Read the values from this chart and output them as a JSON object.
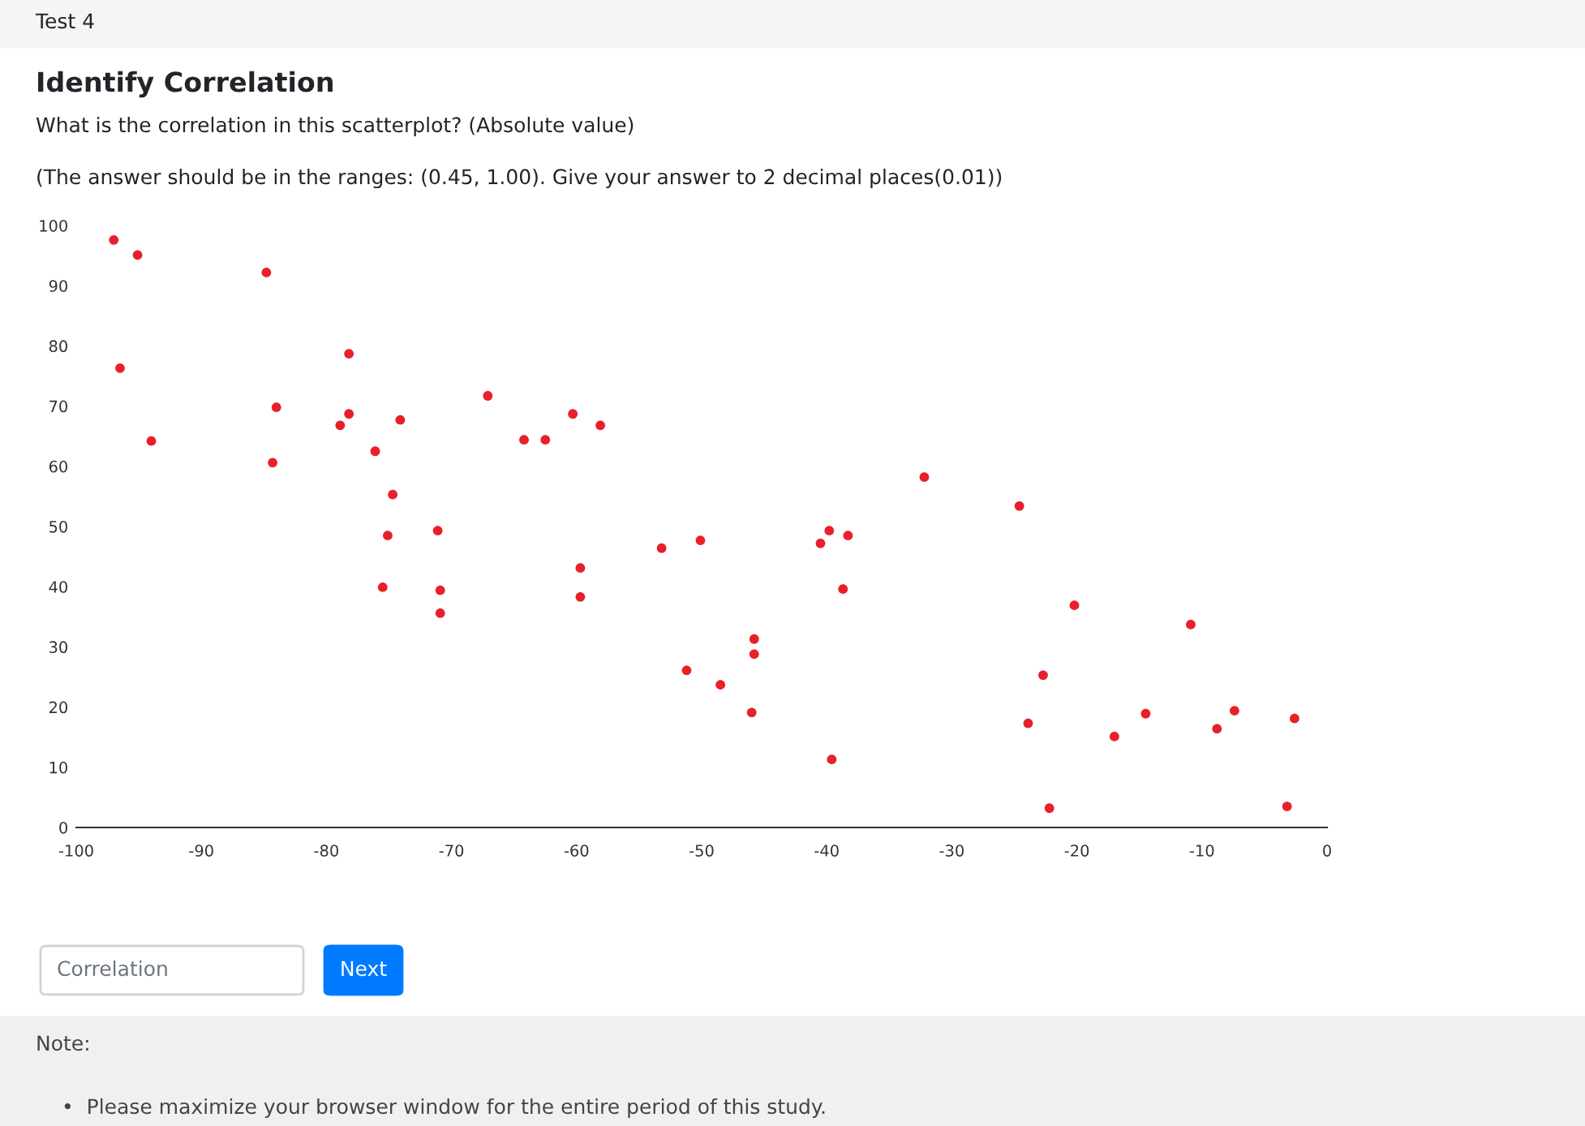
{
  "chart_data": {
    "type": "scatter",
    "title": "Identify Correlation",
    "subtitle": "What is the correlation in this scatterplot? (Absolute value)",
    "annotations": [
      "Test 4",
      "(The answer should be in the ranges: (0.45, 1.00). Give your answer to 2 decimal places(0.01))",
      "Correlation",
      "Next",
      "Note:",
      "•  Please maximize your browser window for the entire period of this study."
    ],
    "x": [
      -97.0,
      -95.1,
      -96.5,
      -94.0,
      -84.8,
      -84.0,
      -84.3,
      -78.2,
      -78.2,
      -78.9,
      -76.1,
      -74.1,
      -74.7,
      -75.1,
      -75.5,
      -71.1,
      -70.9,
      -70.9,
      -67.1,
      -64.2,
      -62.5,
      -60.3,
      -58.1,
      -59.7,
      -59.7,
      -53.2,
      -50.1,
      -51.2,
      -48.5,
      -45.8,
      -45.8,
      -46.0,
      -39.8,
      -40.5,
      -38.3,
      -38.7,
      -39.6,
      -32.2,
      -24.6,
      -22.7,
      -23.9,
      -22.2,
      -20.2,
      -17.0,
      -14.5,
      -10.9,
      -8.8,
      -7.4,
      -2.6,
      -3.2
    ],
    "values": [
      97.6,
      95.1,
      76.3,
      64.2,
      92.2,
      69.8,
      60.6,
      78.7,
      68.7,
      66.8,
      62.5,
      67.7,
      55.3,
      48.5,
      39.9,
      49.3,
      39.4,
      35.6,
      71.7,
      64.4,
      64.4,
      68.7,
      66.8,
      43.1,
      38.3,
      46.4,
      47.7,
      26.1,
      23.7,
      31.3,
      28.8,
      19.1,
      49.3,
      47.2,
      48.5,
      39.6,
      11.3,
      58.2,
      53.4,
      25.3,
      17.3,
      3.2,
      36.9,
      15.1,
      18.9,
      33.7,
      16.4,
      19.4,
      18.1,
      3.5
    ],
    "color": "#e8202a",
    "marker": "circle",
    "xlim": [
      -100,
      0
    ],
    "xticks": [
      -100,
      -90,
      -80,
      -70,
      -60,
      -50,
      -40,
      -30,
      -20,
      -10,
      0
    ],
    "ylim": [
      0,
      100
    ],
    "yticks": [
      0,
      10,
      20,
      30,
      40,
      50,
      60,
      70,
      80,
      90,
      100
    ],
    "grid": false,
    "legend": false
  }
}
